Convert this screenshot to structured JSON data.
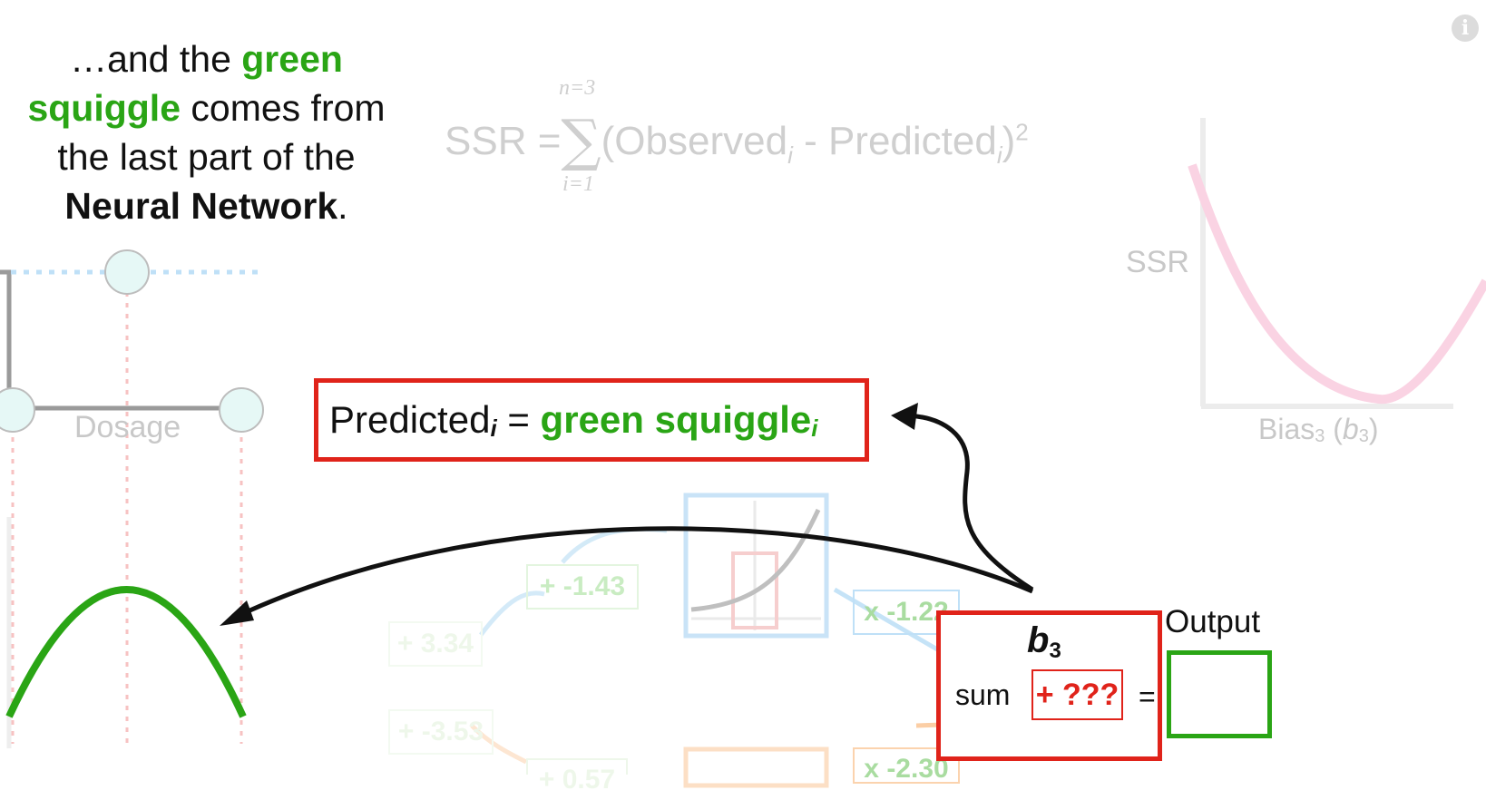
{
  "caption": {
    "part1": "…and the ",
    "green1": "green",
    "green2": "squiggle",
    "part2": " comes from",
    "part3": "the last part of the",
    "bold": "Neural Network",
    "period": "."
  },
  "formula": {
    "lhs": "SSR =",
    "sigma": "∑",
    "upper": "n=3",
    "lower": "i=1",
    "open": "(Observed",
    "sub_i1": "i",
    "mid": " - Predicted",
    "sub_i2": "i",
    "close": ")",
    "power": "2"
  },
  "ssr_plot": {
    "ylabel": "SSR",
    "xlabel_main": "Bias",
    "xlabel_sub": "3",
    "xlabel_paren_open": " (",
    "xlabel_b": "b",
    "xlabel_b_sub": "3",
    "xlabel_paren_close": ")"
  },
  "predicted_box": {
    "lhs": "Predicted",
    "lhs_sub": "i",
    "eq": " = ",
    "rhs": "green squiggle",
    "rhs_sub": "i"
  },
  "left_plot": {
    "xlabel": "Dosage"
  },
  "network": {
    "weight_top_bias": "+ -1.43",
    "weight_upper_left": "+ 3.34",
    "weight_lower_left": "+ -3.53",
    "weight_top_out": "x -1.22",
    "weight_bottom_out": "x -2.30",
    "weight_bottom_bias": "+ 0.57"
  },
  "output_node": {
    "b_label": "b",
    "b_sub": "3",
    "sum_label": "sum",
    "unknown": "+ ???",
    "equals": "=",
    "output_label": "Output"
  },
  "info_icon": "i",
  "colors": {
    "green": "#2aa515",
    "red": "#e0231a",
    "faded_blue": "#bfe0f7",
    "faded_orange": "#fbd3ae",
    "faded_pink": "#f9d2e3"
  }
}
